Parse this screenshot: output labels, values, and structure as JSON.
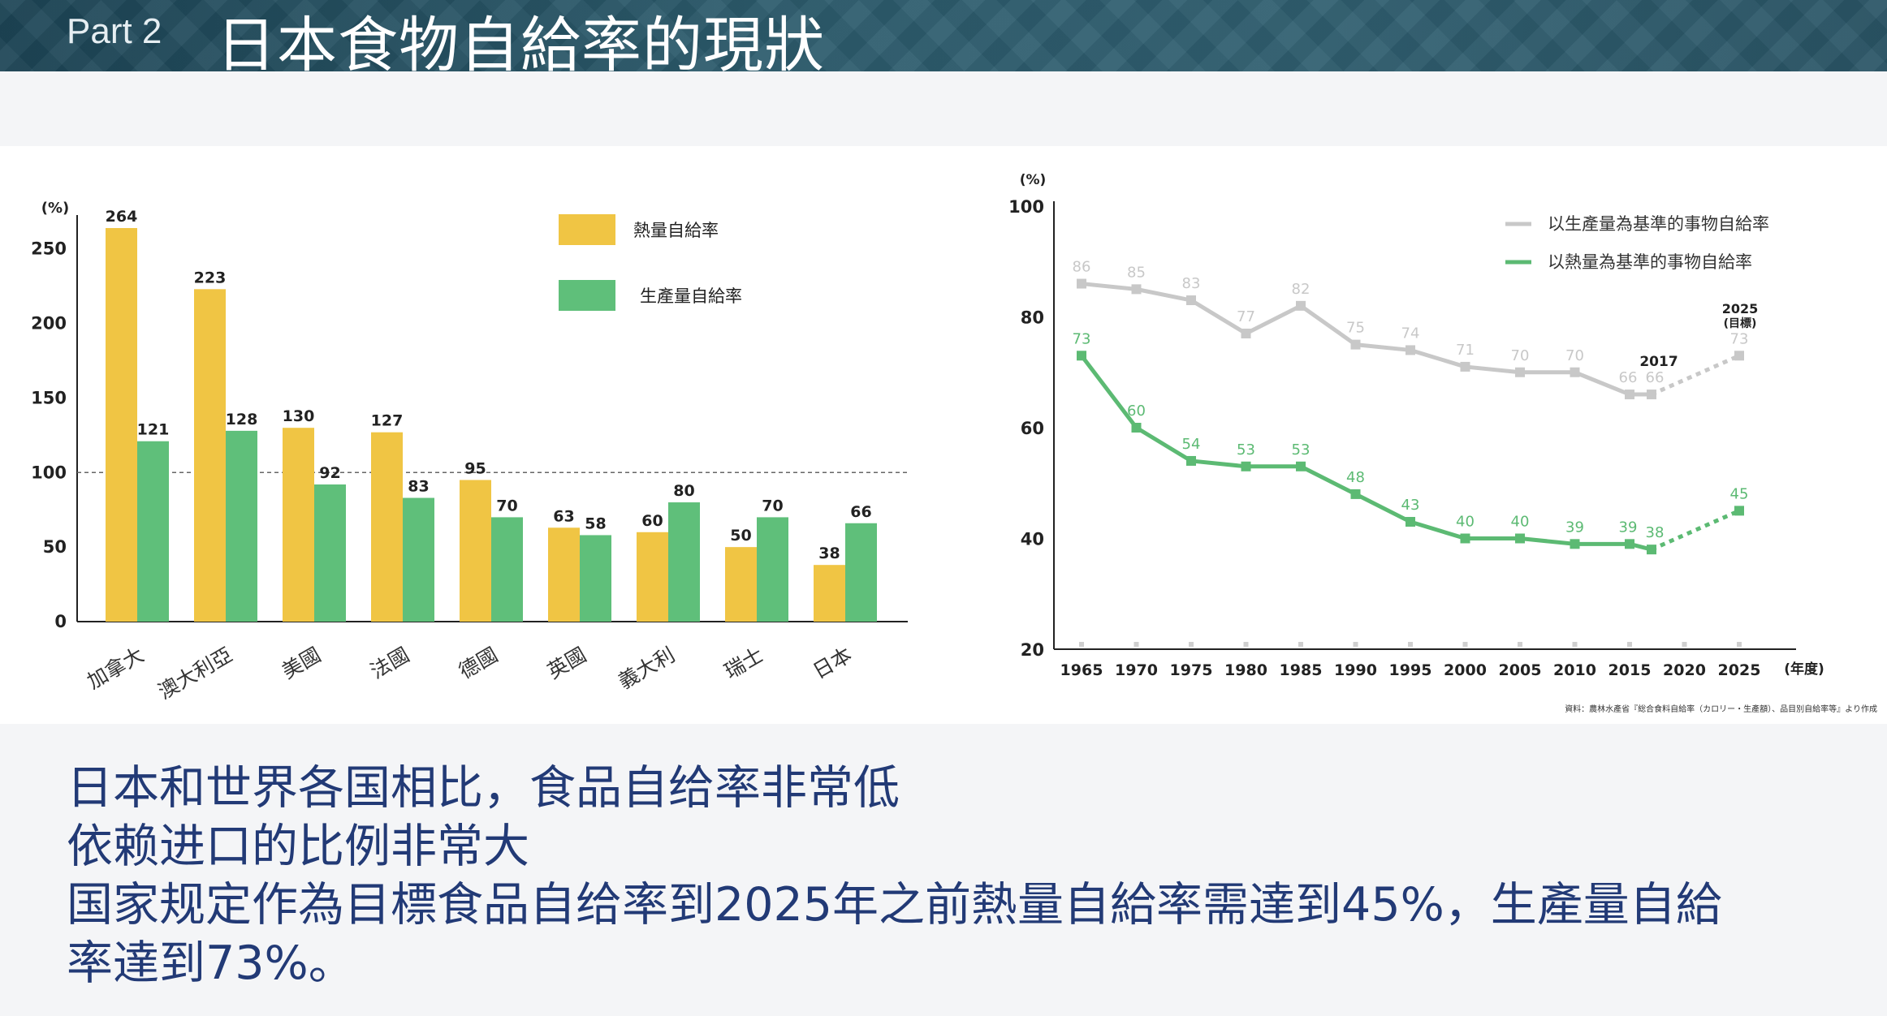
{
  "header": {
    "part": "Part 2",
    "title": "日本食物自給率的現狀"
  },
  "chart_data": [
    {
      "type": "bar",
      "ylabel": "(%)",
      "ylim": [
        0,
        270
      ],
      "yticks": [
        0,
        50,
        100,
        150,
        200,
        250
      ],
      "reference_line": 100,
      "categories": [
        "加拿大",
        "澳大利亞",
        "美國",
        "法國",
        "德國",
        "英國",
        "義大利",
        "瑞士",
        "日本"
      ],
      "series": [
        {
          "name": "熱量自給率",
          "color": "#f0c544",
          "values": [
            264,
            223,
            130,
            127,
            95,
            63,
            60,
            50,
            38
          ]
        },
        {
          "name": "生產量自給率",
          "color": "#5fbf7a",
          "values": [
            121,
            128,
            92,
            83,
            70,
            58,
            80,
            70,
            66
          ]
        }
      ],
      "legend_position": "top-right"
    },
    {
      "type": "line",
      "ylabel": "(%)",
      "xlabel": "(年度)",
      "ylim": [
        20,
        100
      ],
      "yticks": [
        20,
        40,
        60,
        80,
        100
      ],
      "x": [
        1965,
        1970,
        1975,
        1980,
        1985,
        1990,
        1995,
        2000,
        2005,
        2010,
        2015,
        2020,
        2025
      ],
      "series": [
        {
          "name": "以生產量為基準的事物自給率",
          "color": "#c8c8c8",
          "points": [
            [
              1965,
              86
            ],
            [
              1970,
              85
            ],
            [
              1975,
              83
            ],
            [
              1980,
              77
            ],
            [
              1985,
              82
            ],
            [
              1990,
              75
            ],
            [
              1995,
              74
            ],
            [
              2000,
              71
            ],
            [
              2005,
              70
            ],
            [
              2010,
              70
            ],
            [
              2015,
              66
            ],
            [
              2017,
              66
            ]
          ],
          "target": [
            2025,
            73
          ]
        },
        {
          "name": "以熱量為基準的事物自給率",
          "color": "#5cba73",
          "points": [
            [
              1965,
              73
            ],
            [
              1970,
              60
            ],
            [
              1975,
              54
            ],
            [
              1980,
              53
            ],
            [
              1985,
              53
            ],
            [
              1990,
              48
            ],
            [
              1995,
              43
            ],
            [
              2000,
              40
            ],
            [
              2005,
              40
            ],
            [
              2010,
              39
            ],
            [
              2015,
              39
            ],
            [
              2017,
              38
            ]
          ],
          "target": [
            2025,
            45
          ]
        }
      ],
      "annotations": [
        "2017",
        "2025",
        "(目標)"
      ],
      "source": "資料：農林水產省『総合食料自給率（カロリー・生產額）、品目別自給率等』より作成",
      "legend_position": "top-right"
    }
  ],
  "body_lines": [
    "日本和世界各国相比，食品自给率非常低",
    "依赖进口的比例非常大",
    "国家规定作為目標食品自给率到2025年之前熱量自給率需達到45%，生產量自給",
    "率達到73%。"
  ]
}
